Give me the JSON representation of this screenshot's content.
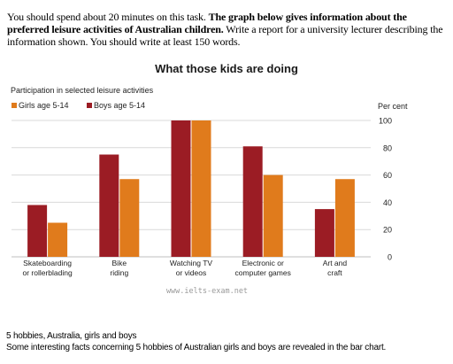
{
  "task": {
    "intro": "You should spend about 20 minutes on this task. ",
    "bold": "The graph below gives information about the preferred leisure activities of Australian children.",
    "rest": " Write a report for a university lecturer describing the information shown. You should write at least 150 words."
  },
  "watermark": "www.ielts-exam.net",
  "footer": {
    "line1": "5 hobbies, Australia, girls and boys",
    "line2": "Some interesting facts concerning 5 hobbies of Australian girls and boys are revealed in the bar chart."
  },
  "chart_data": {
    "type": "bar",
    "title": "What those kids are doing",
    "subtitle": "Participation in selected leisure activities",
    "ylabel": "Per cent",
    "ylim": [
      0,
      100
    ],
    "yticks": [
      0,
      20,
      40,
      60,
      80,
      100
    ],
    "grid": true,
    "legend_position": "top-left",
    "categories": [
      [
        "Skateboarding",
        "or rollerblading"
      ],
      [
        "Bike",
        "riding"
      ],
      [
        "Watching TV",
        "or videos"
      ],
      [
        "Electronic or",
        "computer games"
      ],
      [
        "Art and",
        "craft"
      ]
    ],
    "legend_order": [
      "Girls age 5-14",
      "Boys age 5-14"
    ],
    "series": [
      {
        "name": "Boys age 5-14",
        "color": "#9b1c24",
        "values": [
          38,
          75,
          100,
          81,
          35
        ]
      },
      {
        "name": "Girls age 5-14",
        "color": "#e07b1c",
        "values": [
          25,
          57,
          100,
          60,
          57
        ]
      }
    ]
  }
}
